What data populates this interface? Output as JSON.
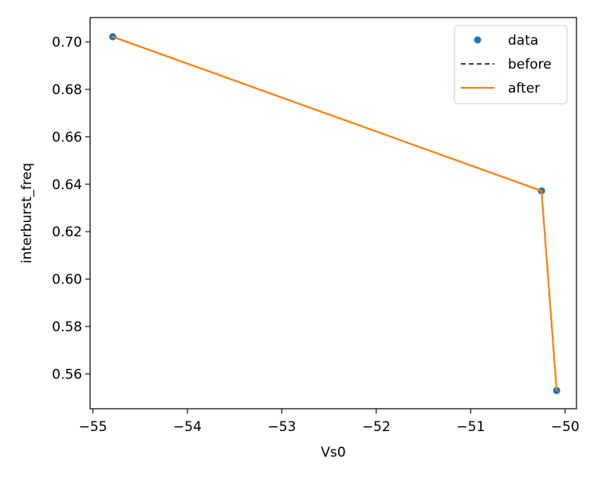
{
  "chart_data": {
    "type": "line",
    "xlabel": "Vs0",
    "ylabel": "interburst_freq",
    "xlim": [
      -55.03,
      -49.88
    ],
    "ylim": [
      0.5453,
      0.7103
    ],
    "xticks": [
      -55,
      -54,
      -53,
      -52,
      -51,
      -50
    ],
    "xtick_labels": [
      "−55",
      "−54",
      "−53",
      "−52",
      "−51",
      "−50"
    ],
    "yticks": [
      0.56,
      0.58,
      0.6,
      0.62,
      0.64,
      0.66,
      0.68,
      0.7
    ],
    "ytick_labels": [
      "0.56",
      "0.58",
      "0.60",
      "0.62",
      "0.64",
      "0.66",
      "0.68",
      "0.70"
    ],
    "grid": false,
    "legend_position": "top-right",
    "series": [
      {
        "name": "data",
        "kind": "scatter",
        "color": "#1f77b4",
        "x": [
          -54.79,
          -50.25,
          -50.09
        ],
        "y": [
          0.7022,
          0.6372,
          0.553
        ]
      },
      {
        "name": "before",
        "kind": "line",
        "style": "dashed",
        "color": "#000000",
        "x": [
          -54.79,
          -50.25,
          -50.09
        ],
        "y": [
          0.7022,
          0.6372,
          0.553
        ]
      },
      {
        "name": "after",
        "kind": "line",
        "style": "solid",
        "color": "#ff7f0e",
        "x": [
          -54.79,
          -50.25,
          -50.09
        ],
        "y": [
          0.7022,
          0.6372,
          0.553
        ]
      }
    ]
  }
}
